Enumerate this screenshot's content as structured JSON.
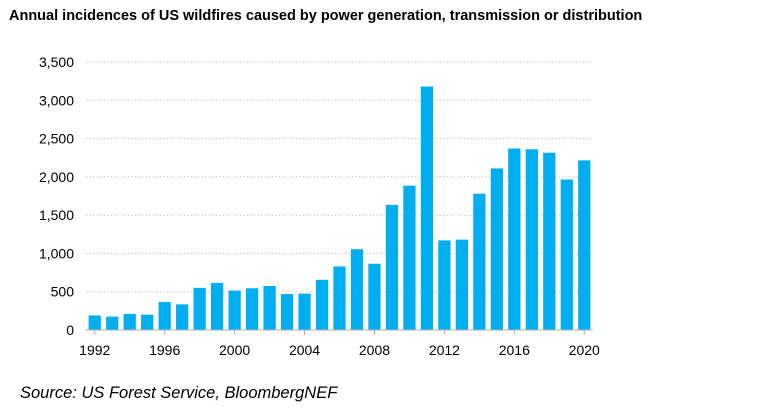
{
  "chart_data": {
    "type": "bar",
    "title": "Annual incidences of US wildfires caused by power generation, transmission or distribution",
    "xlabel": "",
    "ylabel": "",
    "categories": [
      "1992",
      "1993",
      "1994",
      "1995",
      "1996",
      "1997",
      "1998",
      "1999",
      "2000",
      "2001",
      "2002",
      "2003",
      "2004",
      "2005",
      "2006",
      "2007",
      "2008",
      "2009",
      "2010",
      "2011",
      "2012",
      "2013",
      "2014",
      "2015",
      "2016",
      "2017",
      "2018",
      "2019",
      "2020"
    ],
    "values": [
      190,
      175,
      210,
      200,
      365,
      335,
      550,
      615,
      515,
      545,
      575,
      470,
      475,
      655,
      830,
      1055,
      865,
      1635,
      1885,
      3180,
      1170,
      1180,
      1780,
      2110,
      2370,
      2360,
      2315,
      1965,
      2215
    ],
    "x_tick_labels": [
      "1992",
      "1996",
      "2000",
      "2004",
      "2008",
      "2012",
      "2016",
      "2020"
    ],
    "y_tick_labels": [
      "0",
      "500",
      "1,000",
      "1,500",
      "2,000",
      "2,500",
      "3,000",
      "3,500"
    ],
    "ylim": [
      0,
      3500
    ],
    "y_step": 500,
    "bar_color": "#00AEEF",
    "grid": "horizontal dashed",
    "legend": "none"
  },
  "footer": {
    "source": "Source: US Forest Service, BloombergNEF"
  }
}
